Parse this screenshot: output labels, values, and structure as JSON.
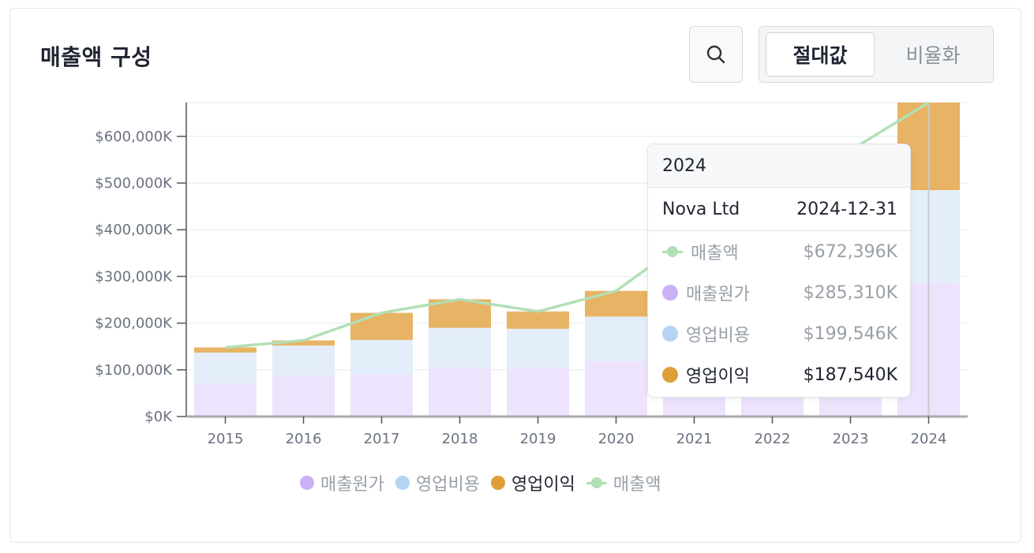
{
  "header": {
    "title": "매출액 구성"
  },
  "controls": {
    "search_icon": "search-icon",
    "mode_options": [
      {
        "label": "절대값",
        "active": true
      },
      {
        "label": "비율화",
        "active": false
      }
    ]
  },
  "chart_data": {
    "type": "bar",
    "stacked": true,
    "categories": [
      "2015",
      "2016",
      "2017",
      "2018",
      "2019",
      "2020",
      "2021",
      "2022",
      "2023",
      "2024"
    ],
    "series": [
      {
        "name": "매출원가",
        "kind": "bar",
        "color": "#ede3fc",
        "values": [
          70000,
          88000,
          90000,
          105000,
          104000,
          118000,
          175000,
          225000,
          260000,
          285310
        ]
      },
      {
        "name": "영업비용",
        "kind": "bar",
        "color": "#e3eefa",
        "values": [
          67000,
          64000,
          74000,
          85000,
          84000,
          96000,
          135000,
          170000,
          185000,
          199546
        ]
      },
      {
        "name": "영업이익",
        "kind": "bar",
        "color": "#e7b364",
        "values": [
          11000,
          11000,
          58000,
          61000,
          37000,
          55000,
          80000,
          110000,
          125000,
          187540
        ]
      },
      {
        "name": "매출액",
        "kind": "line",
        "color": "#b2dfb5",
        "values": [
          148000,
          163000,
          222000,
          251000,
          225000,
          269000,
          390000,
          505000,
          570000,
          672396
        ]
      }
    ],
    "ylim": [
      0,
      672396
    ],
    "y_ticks": [
      "$0K",
      "$100,000K",
      "$200,000K",
      "$300,000K",
      "$400,000K",
      "$500,000K",
      "$600,000K"
    ],
    "y_tick_values": [
      0,
      100000,
      200000,
      300000,
      400000,
      500000,
      600000
    ],
    "grid": true,
    "legend_position": "bottom",
    "legend": [
      {
        "label": "매출원가",
        "color": "#cbb1f5",
        "active": false
      },
      {
        "label": "영업비용",
        "color": "#b5d3f2",
        "active": false
      },
      {
        "label": "영업이익",
        "color": "#dd9f3a",
        "active": true
      },
      {
        "label": "매출액",
        "color": "#b2dfb5",
        "active": false,
        "marker": "line"
      }
    ],
    "highlight_index": 9
  },
  "tooltip": {
    "year": "2024",
    "company": "Nova Ltd",
    "date": "2024-12-31",
    "rows": [
      {
        "label": "매출액",
        "value": "$672,396K",
        "marker": "line",
        "color": "#b2dfb5",
        "active": false
      },
      {
        "label": "매출원가",
        "value": "$285,310K",
        "marker": "dot",
        "color": "#cbb1f5",
        "active": false
      },
      {
        "label": "영업비용",
        "value": "$199,546K",
        "marker": "dot",
        "color": "#b5d3f2",
        "active": false
      },
      {
        "label": "영업이익",
        "value": "$187,540K",
        "marker": "dot",
        "color": "#dd9f3a",
        "active": true
      }
    ]
  }
}
